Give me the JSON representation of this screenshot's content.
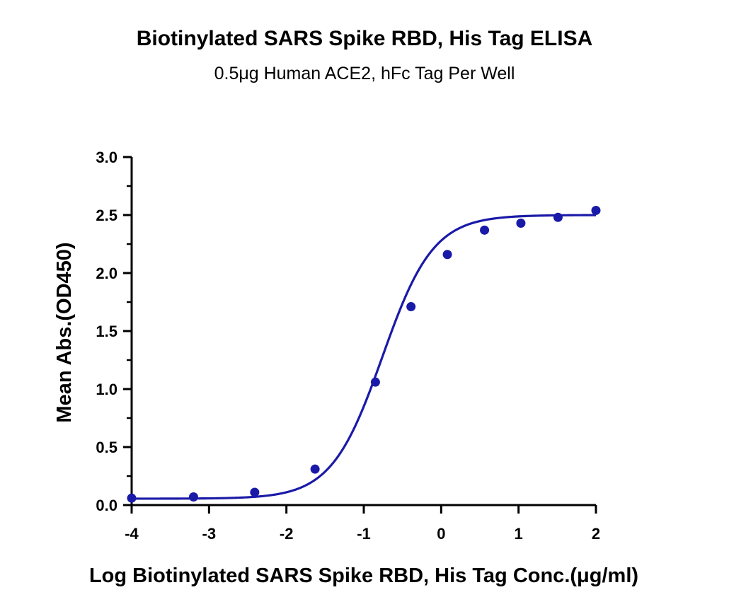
{
  "chart_data": {
    "type": "line",
    "title": "Biotinylated SARS Spike RBD, His Tag ELISA",
    "subtitle": "0.5μg Human ACE2, hFc Tag Per Well",
    "xlabel": "Log Biotinylated SARS Spike RBD, His Tag Conc.(μg/ml)",
    "ylabel": "Mean Abs.(OD450)",
    "xlim": [
      -4,
      2
    ],
    "ylim": [
      0,
      3.0
    ],
    "x_ticks": [
      "-4",
      "-3",
      "-2",
      "-1",
      "0",
      "1",
      "2"
    ],
    "y_ticks": [
      "0.0",
      "0.5",
      "1.0",
      "1.5",
      "2.0",
      "2.5",
      "3.0"
    ],
    "grid": false,
    "color": "#1a1aa8",
    "points": {
      "x": [
        -4.0,
        -3.2,
        -2.41,
        -1.63,
        -0.85,
        -0.39,
        0.08,
        0.56,
        1.03,
        1.51,
        2.0
      ],
      "y": [
        0.06,
        0.07,
        0.11,
        0.31,
        1.06,
        1.71,
        2.16,
        2.37,
        2.43,
        2.48,
        2.54
      ]
    },
    "fit_curve": {
      "model": "4PL",
      "bottom": 0.055,
      "top": 2.5,
      "logEC50": -0.76,
      "hill": 1.32
    }
  }
}
